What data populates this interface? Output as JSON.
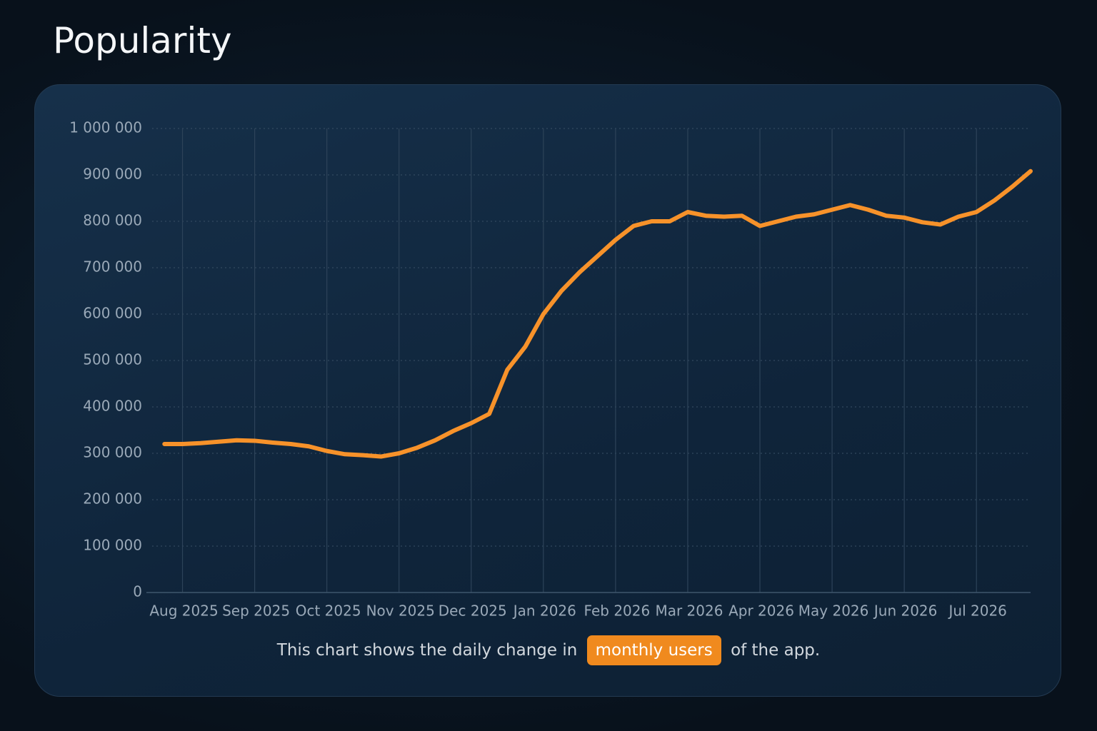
{
  "header": {
    "title": "Popularity"
  },
  "caption": {
    "before": "This chart shows the daily change in",
    "highlight": "monthly users",
    "after": "of the app."
  },
  "chart_data": {
    "type": "line",
    "x": [
      0.75,
      1,
      1.25,
      1.5,
      1.75,
      2,
      2.25,
      2.5,
      2.75,
      3,
      3.25,
      3.5,
      3.75,
      4,
      4.25,
      4.5,
      4.75,
      5,
      5.25,
      5.5,
      5.75,
      6,
      6.25,
      6.5,
      6.75,
      7,
      7.25,
      7.5,
      7.75,
      8,
      8.25,
      8.5,
      8.75,
      9,
      9.25,
      9.5,
      9.75,
      10,
      10.25,
      10.5,
      10.75,
      11,
      11.25,
      11.5,
      11.75,
      12,
      12.25,
      12.5,
      12.75
    ],
    "series": [
      {
        "color": "#f7922a",
        "values": [
          320000,
          320000,
          322000,
          325000,
          328000,
          327000,
          323000,
          320000,
          315000,
          305000,
          298000,
          296000,
          293000,
          300000,
          312000,
          328000,
          348000,
          365000,
          385000,
          480000,
          530000,
          600000,
          650000,
          690000,
          725000,
          760000,
          790000,
          800000,
          800000,
          820000,
          812000,
          810000,
          812000,
          790000,
          800000,
          810000,
          815000,
          825000,
          835000,
          825000,
          812000,
          808000,
          798000,
          793000,
          810000,
          820000,
          845000,
          875000,
          908000
        ]
      }
    ],
    "xlim": [
      0.5,
      12.75
    ],
    "xticks": [
      {
        "value": 1,
        "label": "Aug 2025"
      },
      {
        "value": 2,
        "label": "Sep 2025"
      },
      {
        "value": 3,
        "label": "Oct 2025"
      },
      {
        "value": 4,
        "label": "Nov 2025"
      },
      {
        "value": 5,
        "label": "Dec 2025"
      },
      {
        "value": 6,
        "label": "Jan 2026"
      },
      {
        "value": 7,
        "label": "Feb 2026"
      },
      {
        "value": 8,
        "label": "Mar 2026"
      },
      {
        "value": 9,
        "label": "Apr 2026"
      },
      {
        "value": 10,
        "label": "May 2026"
      },
      {
        "value": 11,
        "label": "Jun 2026"
      },
      {
        "value": 12,
        "label": "Jul 2026"
      }
    ],
    "ylim": [
      0,
      1000000
    ],
    "yticks": [
      0,
      {
        "value": 100000,
        "label": "100 000"
      },
      {
        "value": 200000,
        "label": "200 000"
      },
      {
        "value": 300000,
        "label": "300 000"
      },
      {
        "value": 400000,
        "label": "400 000"
      },
      {
        "value": 500000,
        "label": "500 000"
      },
      {
        "value": 600000,
        "label": "600 000"
      },
      {
        "value": 700000,
        "label": "700 000"
      },
      {
        "value": 800000,
        "label": "800 000"
      },
      {
        "value": 900000,
        "label": "900 000"
      },
      {
        "value": 1000000,
        "label": "1 000 000"
      }
    ],
    "grid": true
  }
}
